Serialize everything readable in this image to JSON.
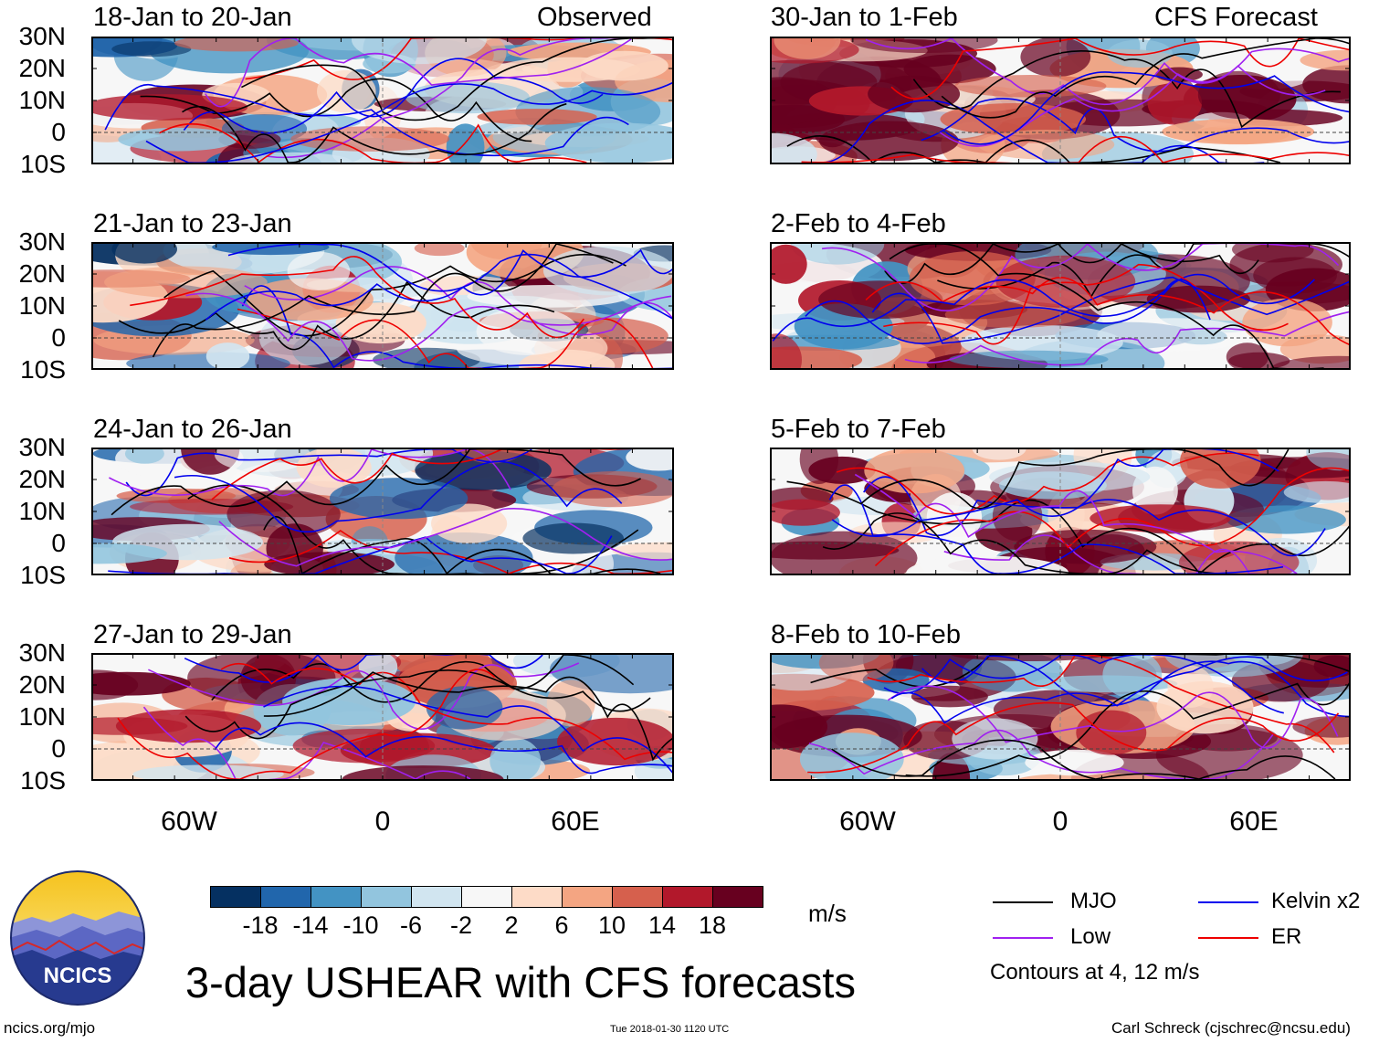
{
  "panels": [
    {
      "title": "18-Jan to 20-Jan",
      "tag": "Observed"
    },
    {
      "title": "21-Jan to 23-Jan",
      "tag": ""
    },
    {
      "title": "24-Jan to 26-Jan",
      "tag": ""
    },
    {
      "title": "27-Jan to 29-Jan",
      "tag": ""
    },
    {
      "title": "30-Jan to 1-Feb",
      "tag": "CFS Forecast"
    },
    {
      "title": "2-Feb to 4-Feb",
      "tag": ""
    },
    {
      "title": "5-Feb to 7-Feb",
      "tag": ""
    },
    {
      "title": "8-Feb to 10-Feb",
      "tag": ""
    }
  ],
  "axes": {
    "lat_labels": [
      "30N",
      "20N",
      "10N",
      "0",
      "10S"
    ],
    "lon_labels": [
      "60W",
      "0",
      "60E"
    ]
  },
  "colorbar": {
    "unit": "m/s",
    "ticks": [
      "-18",
      "-14",
      "-10",
      "-6",
      "-2",
      "2",
      "6",
      "10",
      "14",
      "18"
    ],
    "colors": [
      "#053061",
      "#2166ac",
      "#4393c3",
      "#92c5de",
      "#d1e5f0",
      "#f7f7f7",
      "#fddbc7",
      "#f4a582",
      "#d6604d",
      "#b2182b",
      "#67001f"
    ]
  },
  "legend": {
    "items": [
      {
        "label": "MJO",
        "color": "#000000"
      },
      {
        "label": "Kelvin x2",
        "color": "#0000ee"
      },
      {
        "label": "Low",
        "color": "#a020f0"
      },
      {
        "label": "ER",
        "color": "#ee0000"
      }
    ],
    "contours_note": "Contours at 4, 12 m/s"
  },
  "footer": {
    "logo_text": "NCICS",
    "main_title": "3-day USHEAR with CFS forecasts",
    "url": "ncics.org/mjo",
    "timestamp": "Tue 2018-01-30 1120 UTC",
    "credit": "Carl Schreck (cjschrec@ncsu.edu)"
  }
}
